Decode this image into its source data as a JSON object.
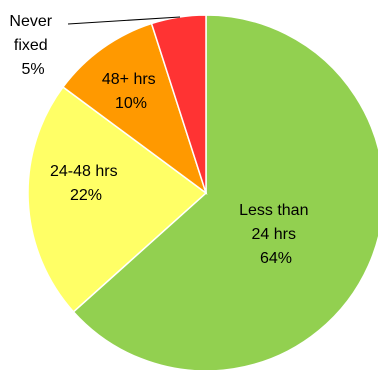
{
  "chart_data": {
    "type": "pie",
    "title": "",
    "slices": [
      {
        "label_lines": [
          "Less than",
          "24 hrs",
          "64%"
        ],
        "value": 64,
        "color": "#92D050"
      },
      {
        "label_lines": [
          "24-48 hrs",
          "22%"
        ],
        "value": 22,
        "color": "#FFFF66"
      },
      {
        "label_lines": [
          "48+ hrs",
          "10%"
        ],
        "value": 10,
        "color": "#FF9900"
      },
      {
        "label_lines": [
          "Never",
          "fixed",
          "5%"
        ],
        "value": 5,
        "color": "#FF3333"
      }
    ]
  }
}
